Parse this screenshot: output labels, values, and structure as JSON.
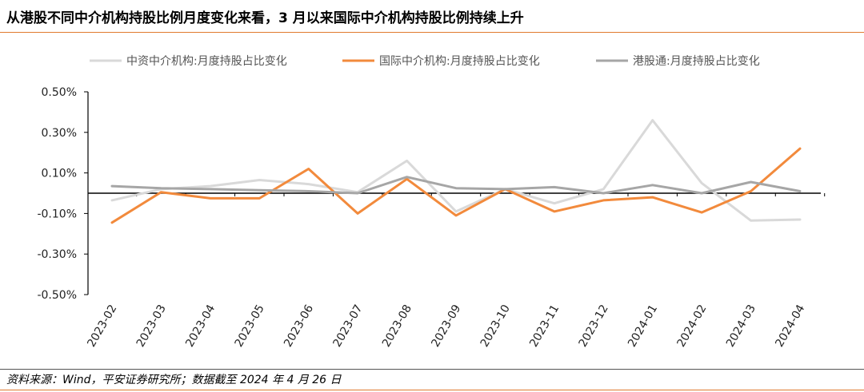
{
  "title": "从港股不同中介机构持股比例月度变化来看，3 月以来国际中介机构持股比例持续上升",
  "footer": "资料来源：Wind，平安证券研究所；数据截至 2024 年 4 月 26 日",
  "chart_data": {
    "type": "line",
    "title": "",
    "xlabel": "",
    "ylabel": "",
    "ylim": [
      -0.5,
      0.5
    ],
    "yticks": [
      "0.50%",
      "0.30%",
      "0.10%",
      "-0.10%",
      "-0.30%",
      "-0.50%"
    ],
    "ytick_values": [
      0.5,
      0.3,
      0.1,
      -0.1,
      -0.3,
      -0.5
    ],
    "categories": [
      "2023-02",
      "2023-03",
      "2023-04",
      "2023-05",
      "2023-06",
      "2023-07",
      "2023-08",
      "2023-09",
      "2023-10",
      "2023-11",
      "2023-12",
      "2024-01",
      "2024-02",
      "2024-03",
      "2024-04"
    ],
    "legend_position": "top",
    "series": [
      {
        "name": "中资中介机构:月度持股占比变化",
        "color": "#d9d9d9",
        "values": [
          -0.035,
          0.02,
          0.035,
          0.065,
          0.045,
          0.005,
          0.16,
          -0.09,
          0.02,
          -0.05,
          0.02,
          0.36,
          0.05,
          -0.135,
          -0.13
        ]
      },
      {
        "name": "国际中介机构:月度持股占比变化",
        "color": "#f28a3c",
        "values": [
          -0.145,
          0.005,
          -0.025,
          -0.025,
          0.12,
          -0.1,
          0.07,
          -0.11,
          0.02,
          -0.09,
          -0.035,
          -0.02,
          -0.095,
          0.01,
          0.22
        ]
      },
      {
        "name": "港股通:月度持股占比变化",
        "color": "#a6a6a6",
        "values": [
          0.035,
          0.025,
          0.02,
          0.015,
          0.01,
          0.0,
          0.08,
          0.025,
          0.02,
          0.03,
          0.0,
          0.04,
          0.0,
          0.055,
          0.01
        ]
      }
    ]
  }
}
